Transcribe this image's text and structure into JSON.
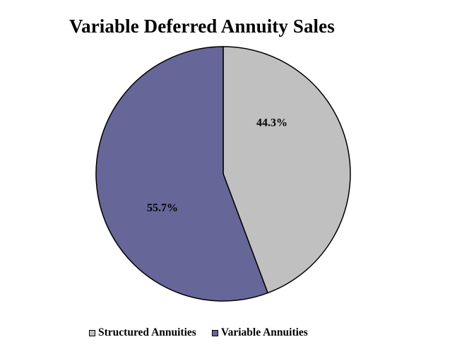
{
  "chart_data": {
    "type": "pie",
    "title": "Variable Deferred Annuity Sales",
    "slices": [
      {
        "label": "Structured Annuities",
        "value": 44.3,
        "display": "44.3%",
        "color": "#c0c0c0"
      },
      {
        "label": "Variable Annuities",
        "value": 55.7,
        "display": "55.7%",
        "color": "#666699"
      }
    ],
    "start_angle_deg": 0,
    "direction": "clockwise",
    "legend_position": "bottom"
  }
}
